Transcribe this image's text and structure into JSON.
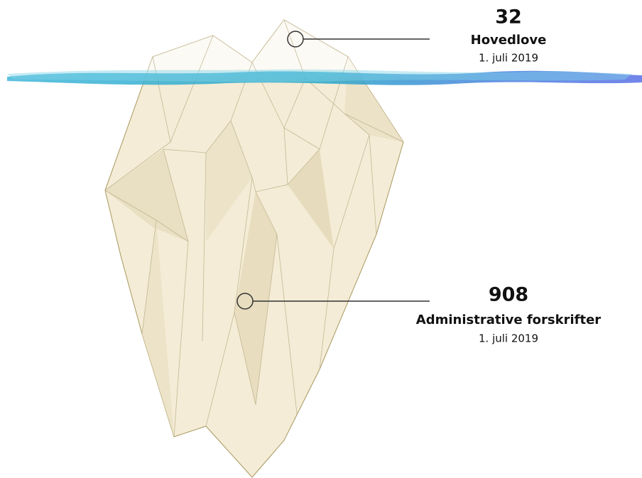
{
  "callouts": [
    {
      "number": 32,
      "label": "Hovedlove",
      "date": "1. juli 2019"
    },
    {
      "number": 908,
      "label": "Administrative forskrifter",
      "date": "1. juli 2019"
    }
  ]
}
